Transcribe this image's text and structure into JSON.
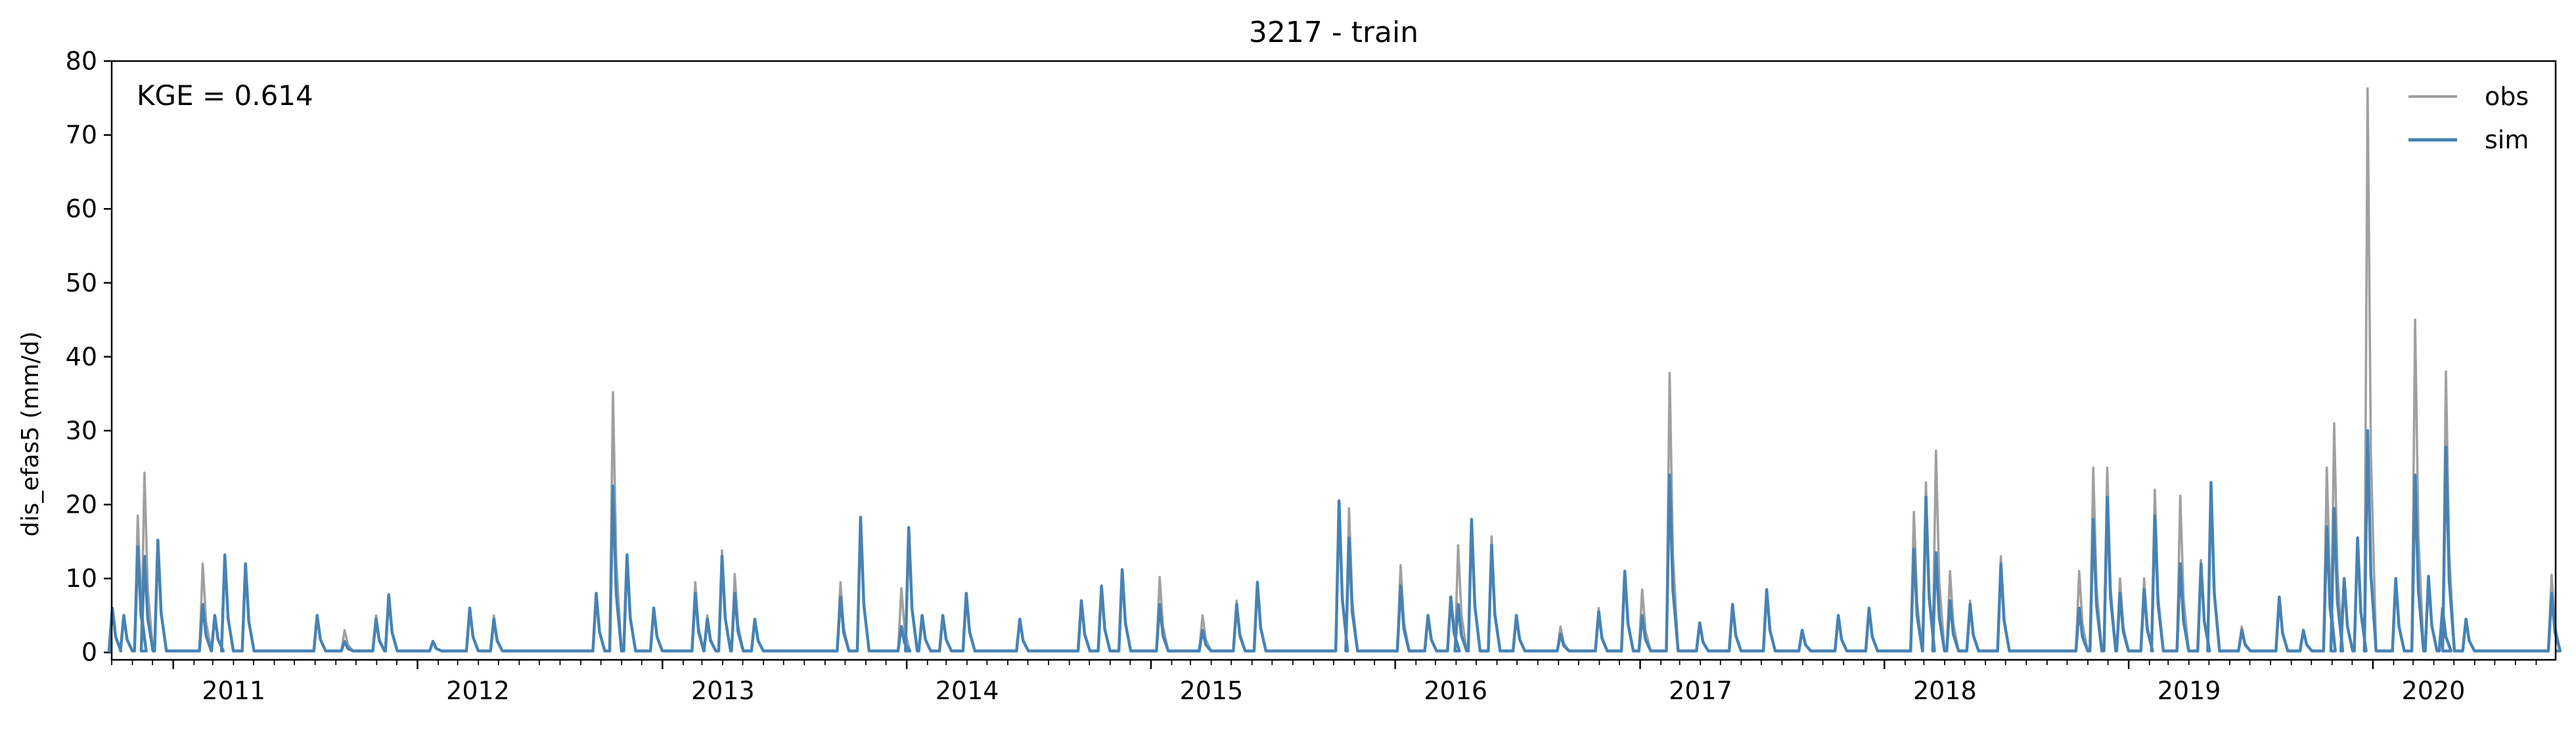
{
  "chart_data": {
    "type": "line",
    "title": "3217 - train",
    "xlabel": "",
    "ylabel": "dis_efas5 (mm/d)",
    "annotation": "KGE = 0.614",
    "xlim": [
      "2010-10-01",
      "2020-09-30"
    ],
    "ylim": [
      -1,
      80
    ],
    "yticks": [
      0,
      10,
      20,
      30,
      40,
      50,
      60,
      70,
      80
    ],
    "xticks": [
      {
        "label": "2011",
        "date": "2011-01-01"
      },
      {
        "label": "2012",
        "date": "2012-01-01"
      },
      {
        "label": "2013",
        "date": "2013-01-01"
      },
      {
        "label": "2014",
        "date": "2014-01-01"
      },
      {
        "label": "2015",
        "date": "2015-01-01"
      },
      {
        "label": "2016",
        "date": "2016-01-01"
      },
      {
        "label": "2017",
        "date": "2017-01-01"
      },
      {
        "label": "2018",
        "date": "2018-01-01"
      },
      {
        "label": "2019",
        "date": "2019-01-01"
      },
      {
        "label": "2020",
        "date": "2020-01-01"
      }
    ],
    "grid": false,
    "legend_position": "top-right",
    "series": [
      {
        "name": "obs",
        "color": "#a0a0a0",
        "points": [
          [
            "2010-10-03",
            6.0
          ],
          [
            "2010-10-20",
            5.0
          ],
          [
            "2010-11-10",
            18.5
          ],
          [
            "2010-11-20",
            24.3
          ],
          [
            "2010-12-10",
            15.0
          ],
          [
            "2011-02-15",
            12.0
          ],
          [
            "2011-03-05",
            5.0
          ],
          [
            "2011-03-20",
            13.0
          ],
          [
            "2011-04-20",
            12.0
          ],
          [
            "2011-08-05",
            5.0
          ],
          [
            "2011-09-15",
            3.0
          ],
          [
            "2011-11-01",
            5.0
          ],
          [
            "2011-11-20",
            7.8
          ],
          [
            "2012-01-25",
            1.5
          ],
          [
            "2012-03-20",
            6.0
          ],
          [
            "2012-04-25",
            5.0
          ],
          [
            "2012-09-25",
            8.0
          ],
          [
            "2012-10-20",
            35.2
          ],
          [
            "2012-11-10",
            13.0
          ],
          [
            "2012-12-20",
            6.0
          ],
          [
            "2013-02-20",
            9.5
          ],
          [
            "2013-03-10",
            5.0
          ],
          [
            "2013-04-01",
            13.8
          ],
          [
            "2013-04-20",
            10.6
          ],
          [
            "2013-05-20",
            4.5
          ],
          [
            "2013-09-25",
            9.5
          ],
          [
            "2013-10-25",
            18.3
          ],
          [
            "2013-12-25",
            8.7
          ],
          [
            "2014-01-05",
            16.9
          ],
          [
            "2014-01-25",
            5.0
          ],
          [
            "2014-02-25",
            5.0
          ],
          [
            "2014-04-01",
            8.0
          ],
          [
            "2014-06-20",
            4.5
          ],
          [
            "2014-09-20",
            7.0
          ],
          [
            "2014-10-20",
            9.0
          ],
          [
            "2014-11-20",
            11.0
          ],
          [
            "2015-01-15",
            10.2
          ],
          [
            "2015-03-20",
            5.0
          ],
          [
            "2015-05-10",
            7.0
          ],
          [
            "2015-06-10",
            9.5
          ],
          [
            "2015-10-10",
            20.5
          ],
          [
            "2015-10-25",
            19.5
          ],
          [
            "2016-01-10",
            11.8
          ],
          [
            "2016-02-20",
            5.0
          ],
          [
            "2016-03-25",
            7.5
          ],
          [
            "2016-04-05",
            14.5
          ],
          [
            "2016-04-25",
            18.0
          ],
          [
            "2016-05-25",
            15.7
          ],
          [
            "2016-07-01",
            5.0
          ],
          [
            "2016-09-05",
            3.5
          ],
          [
            "2016-11-01",
            6.0
          ],
          [
            "2016-12-10",
            11.0
          ],
          [
            "2017-01-05",
            8.5
          ],
          [
            "2017-02-15",
            37.8
          ],
          [
            "2017-04-01",
            4.0
          ],
          [
            "2017-05-20",
            6.5
          ],
          [
            "2017-07-10",
            8.5
          ],
          [
            "2017-09-01",
            3.0
          ],
          [
            "2017-10-25",
            5.0
          ],
          [
            "2017-12-10",
            6.0
          ],
          [
            "2018-02-15",
            19.0
          ],
          [
            "2018-03-05",
            23.0
          ],
          [
            "2018-03-20",
            27.3
          ],
          [
            "2018-04-10",
            11.0
          ],
          [
            "2018-05-10",
            7.0
          ],
          [
            "2018-06-25",
            13.0
          ],
          [
            "2018-10-20",
            11.0
          ],
          [
            "2018-11-10",
            25.0
          ],
          [
            "2018-12-01",
            25.0
          ],
          [
            "2018-12-20",
            10.0
          ],
          [
            "2019-01-25",
            10.0
          ],
          [
            "2019-02-10",
            22.0
          ],
          [
            "2019-03-20",
            21.2
          ],
          [
            "2019-04-20",
            12.5
          ],
          [
            "2019-05-05",
            22.8
          ],
          [
            "2019-06-20",
            3.5
          ],
          [
            "2019-08-15",
            7.5
          ],
          [
            "2019-09-20",
            3.0
          ],
          [
            "2019-10-25",
            25.0
          ],
          [
            "2019-11-05",
            31.0
          ],
          [
            "2019-11-20",
            10.0
          ],
          [
            "2019-12-10",
            15.0
          ],
          [
            "2019-12-25",
            76.3
          ],
          [
            "2020-02-05",
            10.0
          ],
          [
            "2020-03-05",
            45.0
          ],
          [
            "2020-03-25",
            10.3
          ],
          [
            "2020-04-15",
            6.0
          ],
          [
            "2020-04-20",
            38.0
          ],
          [
            "2020-05-20",
            4.5
          ],
          [
            "2020-09-25",
            10.5
          ]
        ]
      },
      {
        "name": "sim",
        "color": "#4682b4",
        "points": [
          [
            "2010-10-03",
            6.0
          ],
          [
            "2010-10-20",
            5.0
          ],
          [
            "2010-11-10",
            14.3
          ],
          [
            "2010-11-20",
            13.0
          ],
          [
            "2010-12-10",
            15.2
          ],
          [
            "2011-02-15",
            6.5
          ],
          [
            "2011-03-05",
            5.0
          ],
          [
            "2011-03-20",
            13.2
          ],
          [
            "2011-04-20",
            12.0
          ],
          [
            "2011-08-05",
            5.0
          ],
          [
            "2011-09-15",
            1.5
          ],
          [
            "2011-11-01",
            4.5
          ],
          [
            "2011-11-20",
            7.8
          ],
          [
            "2012-01-25",
            1.5
          ],
          [
            "2012-03-20",
            6.0
          ],
          [
            "2012-04-25",
            4.5
          ],
          [
            "2012-09-25",
            8.0
          ],
          [
            "2012-10-20",
            22.5
          ],
          [
            "2012-11-10",
            13.2
          ],
          [
            "2012-12-20",
            6.0
          ],
          [
            "2013-02-20",
            8.0
          ],
          [
            "2013-03-10",
            4.5
          ],
          [
            "2013-04-01",
            13.0
          ],
          [
            "2013-04-20",
            8.0
          ],
          [
            "2013-05-20",
            4.5
          ],
          [
            "2013-09-25",
            7.5
          ],
          [
            "2013-10-25",
            18.3
          ],
          [
            "2013-12-25",
            3.5
          ],
          [
            "2014-01-05",
            16.9
          ],
          [
            "2014-01-25",
            5.0
          ],
          [
            "2014-02-25",
            5.0
          ],
          [
            "2014-04-01",
            8.0
          ],
          [
            "2014-06-20",
            4.5
          ],
          [
            "2014-09-20",
            7.0
          ],
          [
            "2014-10-20",
            9.0
          ],
          [
            "2014-11-20",
            11.2
          ],
          [
            "2015-01-15",
            6.5
          ],
          [
            "2015-03-20",
            3.0
          ],
          [
            "2015-05-10",
            6.5
          ],
          [
            "2015-06-10",
            9.5
          ],
          [
            "2015-10-10",
            20.5
          ],
          [
            "2015-10-25",
            15.5
          ],
          [
            "2016-01-10",
            9.0
          ],
          [
            "2016-02-20",
            5.0
          ],
          [
            "2016-03-25",
            7.5
          ],
          [
            "2016-04-05",
            6.5
          ],
          [
            "2016-04-25",
            18.0
          ],
          [
            "2016-05-25",
            14.5
          ],
          [
            "2016-07-01",
            5.0
          ],
          [
            "2016-09-05",
            2.5
          ],
          [
            "2016-11-01",
            5.5
          ],
          [
            "2016-12-10",
            11.0
          ],
          [
            "2017-01-05",
            5.0
          ],
          [
            "2017-02-15",
            24.0
          ],
          [
            "2017-04-01",
            4.0
          ],
          [
            "2017-05-20",
            6.5
          ],
          [
            "2017-07-10",
            8.5
          ],
          [
            "2017-09-01",
            3.0
          ],
          [
            "2017-10-25",
            5.0
          ],
          [
            "2017-12-10",
            6.0
          ],
          [
            "2018-02-15",
            14.0
          ],
          [
            "2018-03-05",
            21.0
          ],
          [
            "2018-03-20",
            13.5
          ],
          [
            "2018-04-10",
            7.0
          ],
          [
            "2018-05-10",
            6.5
          ],
          [
            "2018-06-25",
            12.0
          ],
          [
            "2018-10-20",
            6.0
          ],
          [
            "2018-11-10",
            18.0
          ],
          [
            "2018-12-01",
            21.0
          ],
          [
            "2018-12-20",
            8.0
          ],
          [
            "2019-01-25",
            8.5
          ],
          [
            "2019-02-10",
            18.5
          ],
          [
            "2019-03-20",
            12.0
          ],
          [
            "2019-04-20",
            12.0
          ],
          [
            "2019-05-05",
            23.0
          ],
          [
            "2019-06-20",
            3.0
          ],
          [
            "2019-08-15",
            7.5
          ],
          [
            "2019-09-20",
            3.0
          ],
          [
            "2019-10-25",
            17.0
          ],
          [
            "2019-11-05",
            19.5
          ],
          [
            "2019-11-20",
            10.0
          ],
          [
            "2019-12-10",
            15.5
          ],
          [
            "2019-12-25",
            30.0
          ],
          [
            "2020-02-05",
            10.0
          ],
          [
            "2020-03-05",
            24.0
          ],
          [
            "2020-03-25",
            10.3
          ],
          [
            "2020-04-15",
            6.0
          ],
          [
            "2020-04-20",
            27.8
          ],
          [
            "2020-05-20",
            4.5
          ],
          [
            "2020-09-25",
            8.0
          ]
        ]
      }
    ]
  }
}
